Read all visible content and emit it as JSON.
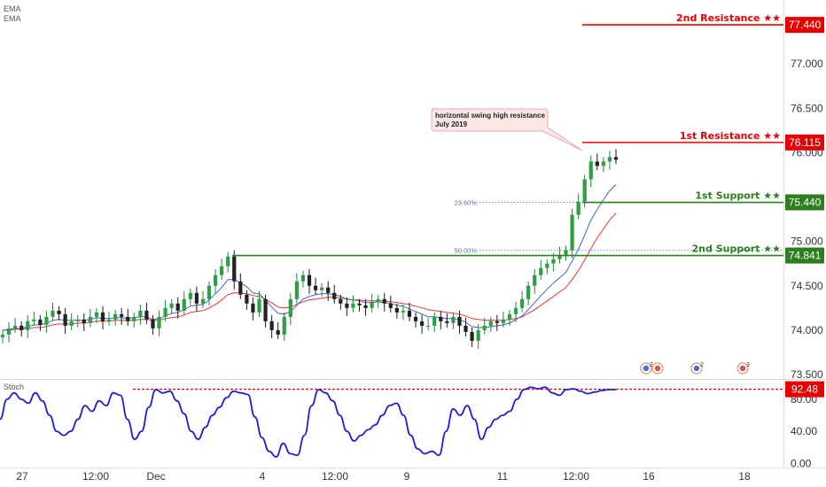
{
  "chart_data": {
    "type": "candlestick",
    "legend": [
      "EMA",
      "EMA"
    ],
    "price_axis": {
      "ticks": [
        77.0,
        76.5,
        76.0,
        75.0,
        74.5,
        74.0,
        73.5
      ],
      "tick_labels": [
        "77.000",
        "76.500",
        "76.000",
        "75.000",
        "74.500",
        "74.000",
        "73.500"
      ],
      "range": [
        73.45,
        77.72
      ]
    },
    "time_axis": {
      "labels": [
        "27",
        "12:00",
        "Dec",
        "4",
        "12:00",
        "9",
        "11",
        "12:00",
        "16",
        "18"
      ]
    },
    "levels": [
      {
        "name": "2nd Resistance ★★",
        "value": "77.440",
        "price": 77.44,
        "color": "#e60000"
      },
      {
        "name": "1st Resistance ★★",
        "value": "76.115",
        "price": 76.115,
        "color": "#e60000"
      },
      {
        "name": "1st Support ★★",
        "value": "75.440",
        "price": 75.44,
        "color": "#2e7d1e"
      },
      {
        "name": "2nd Support ★★",
        "value": "74.841",
        "price": 74.841,
        "color": "#2e7d1e"
      }
    ],
    "fibonacci": [
      {
        "label": "23.60%",
        "price": 75.44
      },
      {
        "label": "50.00%",
        "price": 74.9
      }
    ],
    "annotation": {
      "lines": [
        "horizontal swing high resistance",
        "July 2019"
      ]
    },
    "close_series": [
      73.95,
      74.02,
      74.05,
      74.0,
      74.1,
      74.12,
      74.06,
      74.15,
      74.22,
      74.18,
      74.05,
      74.1,
      74.12,
      74.08,
      74.15,
      74.2,
      74.1,
      74.12,
      74.18,
      74.15,
      74.1,
      74.15,
      74.22,
      74.12,
      74.02,
      74.15,
      74.25,
      74.3,
      74.22,
      74.35,
      74.42,
      74.3,
      74.35,
      74.5,
      74.62,
      74.72,
      74.83,
      74.55,
      74.4,
      74.3,
      74.2,
      74.35,
      74.1,
      74.0,
      73.95,
      74.15,
      74.35,
      74.55,
      74.62,
      74.5,
      74.45,
      74.48,
      74.42,
      74.35,
      74.3,
      74.25,
      74.3,
      74.28,
      74.25,
      74.32,
      74.35,
      74.3,
      74.25,
      74.2,
      74.22,
      74.15,
      74.1,
      74.05,
      74.05,
      74.15,
      74.1,
      74.08,
      74.15,
      74.05,
      73.98,
      73.88,
      74.0,
      74.05,
      74.1,
      74.08,
      74.12,
      74.18,
      74.25,
      74.35,
      74.5,
      74.62,
      74.7,
      74.75,
      74.8,
      74.85,
      74.9,
      75.3,
      75.45,
      75.7,
      75.9,
      75.85,
      75.9,
      75.95,
      75.92
    ],
    "ema_fast": [
      74.0,
      74.01,
      74.02,
      74.02,
      74.04,
      74.06,
      74.06,
      74.08,
      74.11,
      74.12,
      74.11,
      74.11,
      74.11,
      74.11,
      74.12,
      74.14,
      74.13,
      74.13,
      74.14,
      74.14,
      74.13,
      74.14,
      74.15,
      74.15,
      74.12,
      74.13,
      74.16,
      74.19,
      74.2,
      74.23,
      74.27,
      74.28,
      74.29,
      74.34,
      74.41,
      74.48,
      74.57,
      74.57,
      74.53,
      74.49,
      74.42,
      74.41,
      74.34,
      74.26,
      74.19,
      74.18,
      74.21,
      74.28,
      74.35,
      74.38,
      74.4,
      74.41,
      74.41,
      74.4,
      74.38,
      74.35,
      74.34,
      74.33,
      74.31,
      74.31,
      74.32,
      74.31,
      74.3,
      74.28,
      74.27,
      74.24,
      74.21,
      74.18,
      74.15,
      74.15,
      74.14,
      74.13,
      74.13,
      74.12,
      74.09,
      74.04,
      74.03,
      74.03,
      74.04,
      74.05,
      74.06,
      74.08,
      74.12,
      74.16,
      74.23,
      74.31,
      74.39,
      74.46,
      74.53,
      74.59,
      74.65,
      74.78,
      74.91,
      75.07,
      75.24,
      75.36,
      75.47,
      75.57,
      75.64
    ],
    "ema_slow": [
      74.0,
      74.0,
      74.01,
      74.01,
      74.02,
      74.03,
      74.03,
      74.04,
      74.06,
      74.07,
      74.07,
      74.07,
      74.08,
      74.08,
      74.09,
      74.1,
      74.1,
      74.1,
      74.11,
      74.11,
      74.11,
      74.11,
      74.12,
      74.12,
      74.11,
      74.11,
      74.13,
      74.14,
      74.15,
      74.17,
      74.2,
      74.21,
      74.22,
      74.25,
      74.29,
      74.34,
      74.4,
      74.42,
      74.42,
      74.41,
      74.39,
      74.38,
      74.35,
      74.31,
      74.26,
      74.25,
      74.26,
      74.29,
      74.32,
      74.34,
      74.35,
      74.36,
      74.37,
      74.37,
      74.36,
      74.35,
      74.34,
      74.34,
      74.33,
      74.33,
      74.33,
      74.33,
      74.32,
      74.31,
      74.3,
      74.29,
      74.27,
      74.25,
      74.23,
      74.22,
      74.21,
      74.2,
      74.19,
      74.18,
      74.16,
      74.13,
      74.12,
      74.11,
      74.11,
      74.11,
      74.11,
      74.12,
      74.13,
      74.15,
      74.19,
      74.23,
      74.28,
      74.33,
      74.38,
      74.43,
      74.48,
      74.57,
      74.67,
      74.79,
      74.92,
      75.04,
      75.14,
      75.24,
      75.32
    ],
    "stochastic": {
      "label": "Stoch",
      "value": "92.48",
      "level": 92.48,
      "ticks": [
        80.0,
        40.0,
        0.0
      ],
      "tick_labels": [
        "80.00",
        "40.00",
        "0.00"
      ],
      "range": [
        -3,
        102
      ],
      "series": [
        55,
        80,
        88,
        80,
        75,
        88,
        78,
        60,
        40,
        35,
        40,
        55,
        72,
        65,
        78,
        72,
        88,
        85,
        55,
        30,
        40,
        70,
        92,
        88,
        90,
        78,
        62,
        40,
        30,
        45,
        60,
        70,
        82,
        90,
        88,
        86,
        58,
        32,
        15,
        8,
        25,
        12,
        10,
        35,
        72,
        92,
        88,
        78,
        60,
        40,
        28,
        35,
        42,
        48,
        60,
        72,
        75,
        60,
        35,
        18,
        12,
        15,
        10,
        40,
        68,
        60,
        72,
        55,
        30,
        45,
        55,
        60,
        65,
        80,
        92,
        95,
        93,
        95,
        88,
        85,
        92,
        93,
        90,
        87,
        89,
        91,
        92,
        92
      ]
    }
  },
  "badges": [
    {
      "label": "2"
    },
    {
      "label": "2"
    },
    {
      "label": "3"
    }
  ]
}
